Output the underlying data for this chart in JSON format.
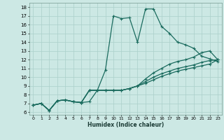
{
  "xlabel": "Humidex (Indice chaleur)",
  "bg_color": "#cce8e4",
  "line_color": "#1a6b5e",
  "grid_color": "#aacfca",
  "xlim": [
    -0.5,
    23.5
  ],
  "ylim": [
    5.7,
    18.5
  ],
  "xticks": [
    0,
    1,
    2,
    3,
    4,
    5,
    6,
    7,
    8,
    9,
    10,
    11,
    12,
    13,
    14,
    15,
    16,
    17,
    18,
    19,
    20,
    21,
    22,
    23
  ],
  "yticks": [
    6,
    7,
    8,
    9,
    10,
    11,
    12,
    13,
    14,
    15,
    16,
    17,
    18
  ],
  "series1_x": [
    0,
    1,
    2,
    3,
    4,
    5,
    6,
    7,
    8,
    9,
    10,
    11,
    12,
    13,
    14,
    15,
    16,
    17,
    18,
    19,
    20,
    21,
    22,
    23
  ],
  "series1_y": [
    6.8,
    7.0,
    6.2,
    7.3,
    7.4,
    7.2,
    7.1,
    7.2,
    8.5,
    10.8,
    17.0,
    16.7,
    16.8,
    14.0,
    17.8,
    17.8,
    15.8,
    15.0,
    14.0,
    13.7,
    13.3,
    12.4,
    12.1,
    11.8
  ],
  "series2_x": [
    0,
    1,
    2,
    3,
    4,
    5,
    6,
    7,
    8,
    9,
    10,
    11,
    12,
    13,
    14,
    15,
    16,
    17,
    18,
    19,
    20,
    21,
    22,
    23
  ],
  "series2_y": [
    6.8,
    7.0,
    6.2,
    7.3,
    7.4,
    7.2,
    7.1,
    8.5,
    8.5,
    8.5,
    8.5,
    8.5,
    8.7,
    9.0,
    9.8,
    10.5,
    11.0,
    11.5,
    11.8,
    12.0,
    12.3,
    12.8,
    13.0,
    12.0
  ],
  "series3_x": [
    0,
    1,
    2,
    3,
    4,
    5,
    6,
    7,
    8,
    9,
    10,
    11,
    12,
    13,
    14,
    15,
    16,
    17,
    18,
    19,
    20,
    21,
    22,
    23
  ],
  "series3_y": [
    6.8,
    7.0,
    6.2,
    7.3,
    7.4,
    7.2,
    7.1,
    8.5,
    8.5,
    8.5,
    8.5,
    8.5,
    8.7,
    9.0,
    9.5,
    10.0,
    10.4,
    10.7,
    11.0,
    11.2,
    11.4,
    11.7,
    11.9,
    12.0
  ],
  "series4_x": [
    0,
    1,
    2,
    3,
    4,
    5,
    6,
    7,
    8,
    9,
    10,
    11,
    12,
    13,
    14,
    15,
    16,
    17,
    18,
    19,
    20,
    21,
    22,
    23
  ],
  "series4_y": [
    6.8,
    7.0,
    6.2,
    7.3,
    7.4,
    7.2,
    7.1,
    8.5,
    8.5,
    8.5,
    8.5,
    8.5,
    8.7,
    9.0,
    9.3,
    9.7,
    10.1,
    10.4,
    10.7,
    10.9,
    11.1,
    11.3,
    11.5,
    12.0
  ]
}
